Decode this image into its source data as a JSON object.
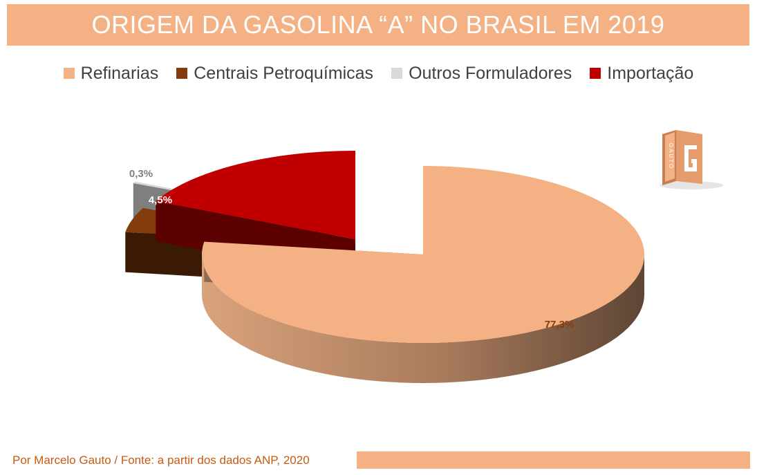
{
  "title": "ORIGEM DA GASOLINA “A” NO BRASIL EM 2019",
  "footer": "Por Marcelo Gauto / Fonte: a partir dos dados ANP, 2020",
  "logo": {
    "icon": "book-g-logo-icon",
    "text": "GAUTO",
    "letter": "G"
  },
  "colors": {
    "title_bar": "#F4B183",
    "footer_text": "#C55A11"
  },
  "chart_data": {
    "type": "pie",
    "style": "3d-exploded",
    "title": "ORIGEM DA GASOLINA “A” NO BRASIL EM 2019",
    "legend_position": "top",
    "slices": [
      {
        "label": "Refinarias",
        "value": 77.3,
        "value_label": "77,3%",
        "color": "#F4B183",
        "side_color": "#C28A62"
      },
      {
        "label": "Centrais Petroquímicas",
        "value": 4.5,
        "value_label": "4,5%",
        "color": "#843C0C",
        "side_color": "#3A1A05"
      },
      {
        "label": "Outros Formuladores",
        "value": 0.3,
        "value_label": "0,3%",
        "color": "#D9D9D9",
        "side_color": "#7F7F7F"
      },
      {
        "label": "Importação",
        "value": 17.9,
        "value_label": "17,9%",
        "color": "#C00000",
        "side_color": "#5C0000"
      }
    ]
  }
}
